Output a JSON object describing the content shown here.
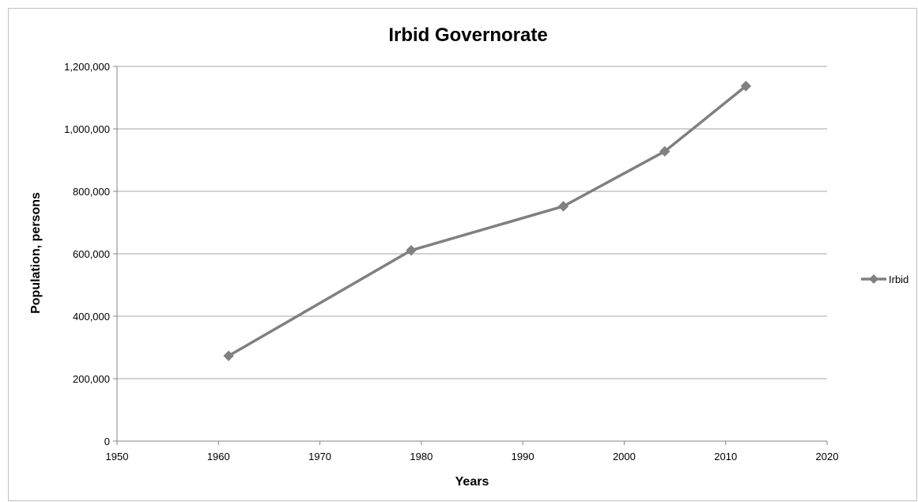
{
  "chart_data": {
    "type": "line",
    "title": "Irbid Governorate",
    "xlabel": "Years",
    "ylabel": "Population, persons",
    "xlim": [
      1950,
      2020
    ],
    "ylim": [
      0,
      1200000
    ],
    "x_ticks": [
      1950,
      1960,
      1970,
      1980,
      1990,
      2000,
      2010,
      2020
    ],
    "x_tick_labels": [
      "1950",
      "1960",
      "1970",
      "1980",
      "1990",
      "2000",
      "2010",
      "2020"
    ],
    "y_ticks": [
      0,
      200000,
      400000,
      600000,
      800000,
      1000000,
      1200000
    ],
    "y_tick_labels": [
      "0",
      "200,000",
      "400,000",
      "600,000",
      "800,000",
      "1,000,000",
      "1,200,000"
    ],
    "grid": "horizontal",
    "legend_position": "right",
    "series": [
      {
        "name": "Irbid",
        "color": "#808080",
        "marker": "diamond",
        "points": [
          {
            "x": 1961,
            "y": 273000
          },
          {
            "x": 1979,
            "y": 611000
          },
          {
            "x": 1994,
            "y": 752000
          },
          {
            "x": 2004,
            "y": 928000
          },
          {
            "x": 2012,
            "y": 1137000
          }
        ]
      }
    ]
  }
}
